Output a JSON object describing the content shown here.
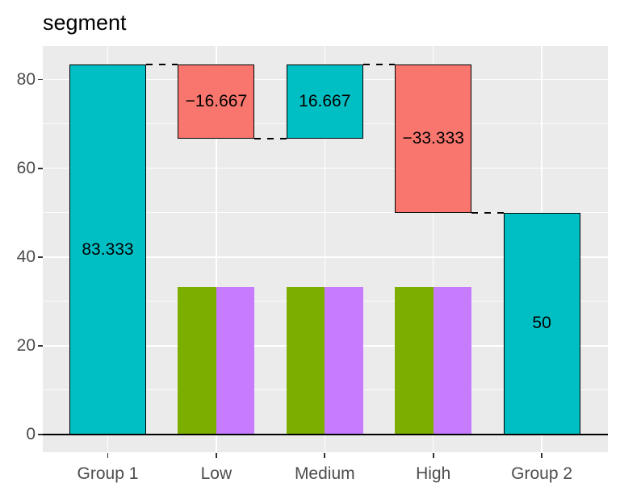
{
  "chart_data": {
    "type": "bar",
    "subtype": "waterfall",
    "title": "segment",
    "categories": [
      "Group 1",
      "Low",
      "Medium",
      "High",
      "Group 2"
    ],
    "y_axis": {
      "tick_values": [
        0,
        20,
        40,
        60,
        80
      ],
      "tick_labels": [
        "0",
        "20",
        "40",
        "60",
        "80"
      ],
      "minor_tick_values": [
        10,
        30,
        50,
        70
      ],
      "ylim": [
        -4.2,
        87.5
      ]
    },
    "waterfall_segments": [
      {
        "category": "Group 1",
        "label": "83.333",
        "value": 83.333,
        "start": 0,
        "end": 83.333,
        "direction": "increase"
      },
      {
        "category": "Low",
        "label": "−16.667",
        "value": -16.667,
        "start": 83.333,
        "end": 66.667,
        "direction": "decrease"
      },
      {
        "category": "Medium",
        "label": "16.667",
        "value": 16.667,
        "start": 66.667,
        "end": 83.333,
        "direction": "increase"
      },
      {
        "category": "High",
        "label": "−33.333",
        "value": -33.333,
        "start": 83.333,
        "end": 50,
        "direction": "decrease"
      },
      {
        "category": "Group 2",
        "label": "50",
        "value": 50,
        "start": 0,
        "end": 50,
        "direction": "increase"
      }
    ],
    "connectors": [
      {
        "from": "Group 1",
        "to": "Low",
        "level": 83.333
      },
      {
        "from": "Low",
        "to": "Medium",
        "level": 66.667
      },
      {
        "from": "Medium",
        "to": "High",
        "level": 83.333
      },
      {
        "from": "High",
        "to": "Group 2",
        "level": 50
      }
    ],
    "dodged_bars": {
      "categories": [
        "Low",
        "Medium",
        "High"
      ],
      "series": [
        {
          "name": "green",
          "color": "#7CAE00",
          "values": [
            33.333,
            33.333,
            33.333
          ]
        },
        {
          "name": "purple",
          "color": "#C77CFF",
          "values": [
            33.333,
            33.333,
            33.333
          ]
        }
      ]
    },
    "colors": {
      "increase_fill": "#00BFC4",
      "decrease_fill": "#F8766D",
      "bar_outline": "#000000",
      "panel_background": "#EBEBEB",
      "gridline": "#FFFFFF",
      "axis_text": "#4D4D4D",
      "tick_mark": "#333333",
      "axis_line": "#000000",
      "value_label": "#000000",
      "connector": "#000000"
    },
    "legend": "none",
    "grid": true
  }
}
